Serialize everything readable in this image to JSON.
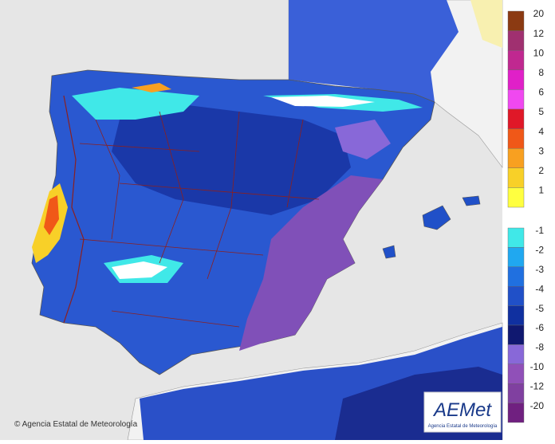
{
  "legend": {
    "positive": [
      {
        "label": 20,
        "color": "#8b3a12"
      },
      {
        "label": 12,
        "color": "#a03070"
      },
      {
        "label": 10,
        "color": "#c02890"
      },
      {
        "label": 8,
        "color": "#e020c8"
      },
      {
        "label": 6,
        "color": "#f048f0"
      },
      {
        "label": 5,
        "color": "#e01828"
      },
      {
        "label": 4,
        "color": "#f05818"
      },
      {
        "label": 3,
        "color": "#f8a020"
      },
      {
        "label": 2,
        "color": "#f8d028"
      },
      {
        "label": 1,
        "color": "#ffff40"
      }
    ],
    "negative": [
      {
        "label": -1,
        "color": "#40e8e8"
      },
      {
        "label": -2,
        "color": "#20a8f0"
      },
      {
        "label": -3,
        "color": "#2070e0"
      },
      {
        "label": -4,
        "color": "#2050c8"
      },
      {
        "label": -5,
        "color": "#1030a0"
      },
      {
        "label": -6,
        "color": "#101870"
      },
      {
        "label": -8,
        "color": "#8868d8"
      },
      {
        "label": -10,
        "color": "#9050b8"
      },
      {
        "label": -12,
        "color": "#8040a0"
      },
      {
        "label": -20,
        "color": "#702080"
      }
    ]
  },
  "footer": {
    "copyright": "© Agencia Estatal de Meteorología"
  },
  "logo": {
    "name": "AEMet",
    "subtitle": "Agencia Estatal de Meteorología"
  }
}
